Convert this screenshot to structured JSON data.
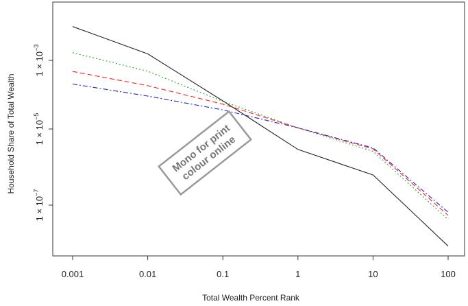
{
  "chart_data": {
    "type": "line",
    "title": "",
    "xlabel": "Total Wealth Percent Rank",
    "ylabel": "Household Share of Total Wealth",
    "x_scale": "log",
    "y_scale": "log",
    "xlim": [
      0.001,
      100
    ],
    "ylim": [
      1e-09,
      0.02
    ],
    "x_ticks": [
      {
        "value": 0.001,
        "label": "0.001"
      },
      {
        "value": 0.01,
        "label": "0.01"
      },
      {
        "value": 0.1,
        "label": "0.1"
      },
      {
        "value": 1,
        "label": "1"
      },
      {
        "value": 10,
        "label": "10"
      },
      {
        "value": 100,
        "label": "100"
      }
    ],
    "y_ticks": [
      {
        "value": 1e-07,
        "base": "1 × 10",
        "exp": "−7"
      },
      {
        "value": 1e-05,
        "base": "1 × 10",
        "exp": "−5"
      },
      {
        "value": 0.001,
        "base": "1 × 10",
        "exp": "−3"
      }
    ],
    "grid": false,
    "legend": "none",
    "x": [
      0.001,
      0.01,
      0.1,
      1,
      10,
      100
    ],
    "series": [
      {
        "color": "#222222",
        "dash": "solid",
        "values": [
          0.0097,
          0.00155,
          6.6e-05,
          2.9e-06,
          6.2e-07,
          8.4e-09
        ]
      },
      {
        "color": "#2ca02c",
        "dash": "dotted",
        "values": [
          0.00168,
          0.00048,
          6.4e-05,
          1.07e-05,
          2.6e-06,
          4.2e-08
        ]
      },
      {
        "color": "#ff2020",
        "dash": "dashed",
        "values": [
          0.000477,
          0.000183,
          5.3e-05,
          1.08e-05,
          3e-06,
          5.4e-08
        ]
      },
      {
        "color": "#2222cc",
        "dash": "dashdot",
        "values": [
          0.000204,
          9.1e-05,
          3.6e-05,
          1.08e-05,
          3.2e-06,
          6.5e-08
        ]
      }
    ]
  },
  "stamp": {
    "line1": "Mono for print",
    "line2": "colour online"
  }
}
